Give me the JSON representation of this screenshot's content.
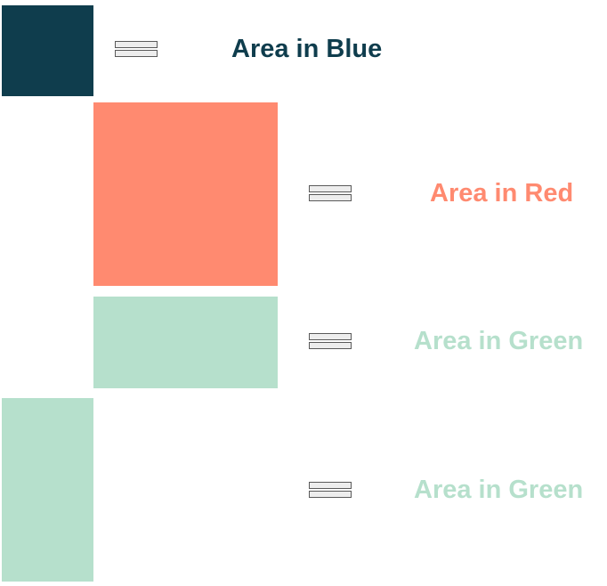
{
  "colors": {
    "blue": "#0f3d4d",
    "red": "#ff8a70",
    "green": "#b6e0cc",
    "equals_fill": "#ededed",
    "equals_stroke": "#5a5a5a"
  },
  "rows": [
    {
      "label": "Area in Blue",
      "color": "blue"
    },
    {
      "label": "Area in Red",
      "color": "red"
    },
    {
      "label": "Area in Green",
      "color": "green"
    },
    {
      "label": "Area in Green",
      "color": "green"
    }
  ]
}
